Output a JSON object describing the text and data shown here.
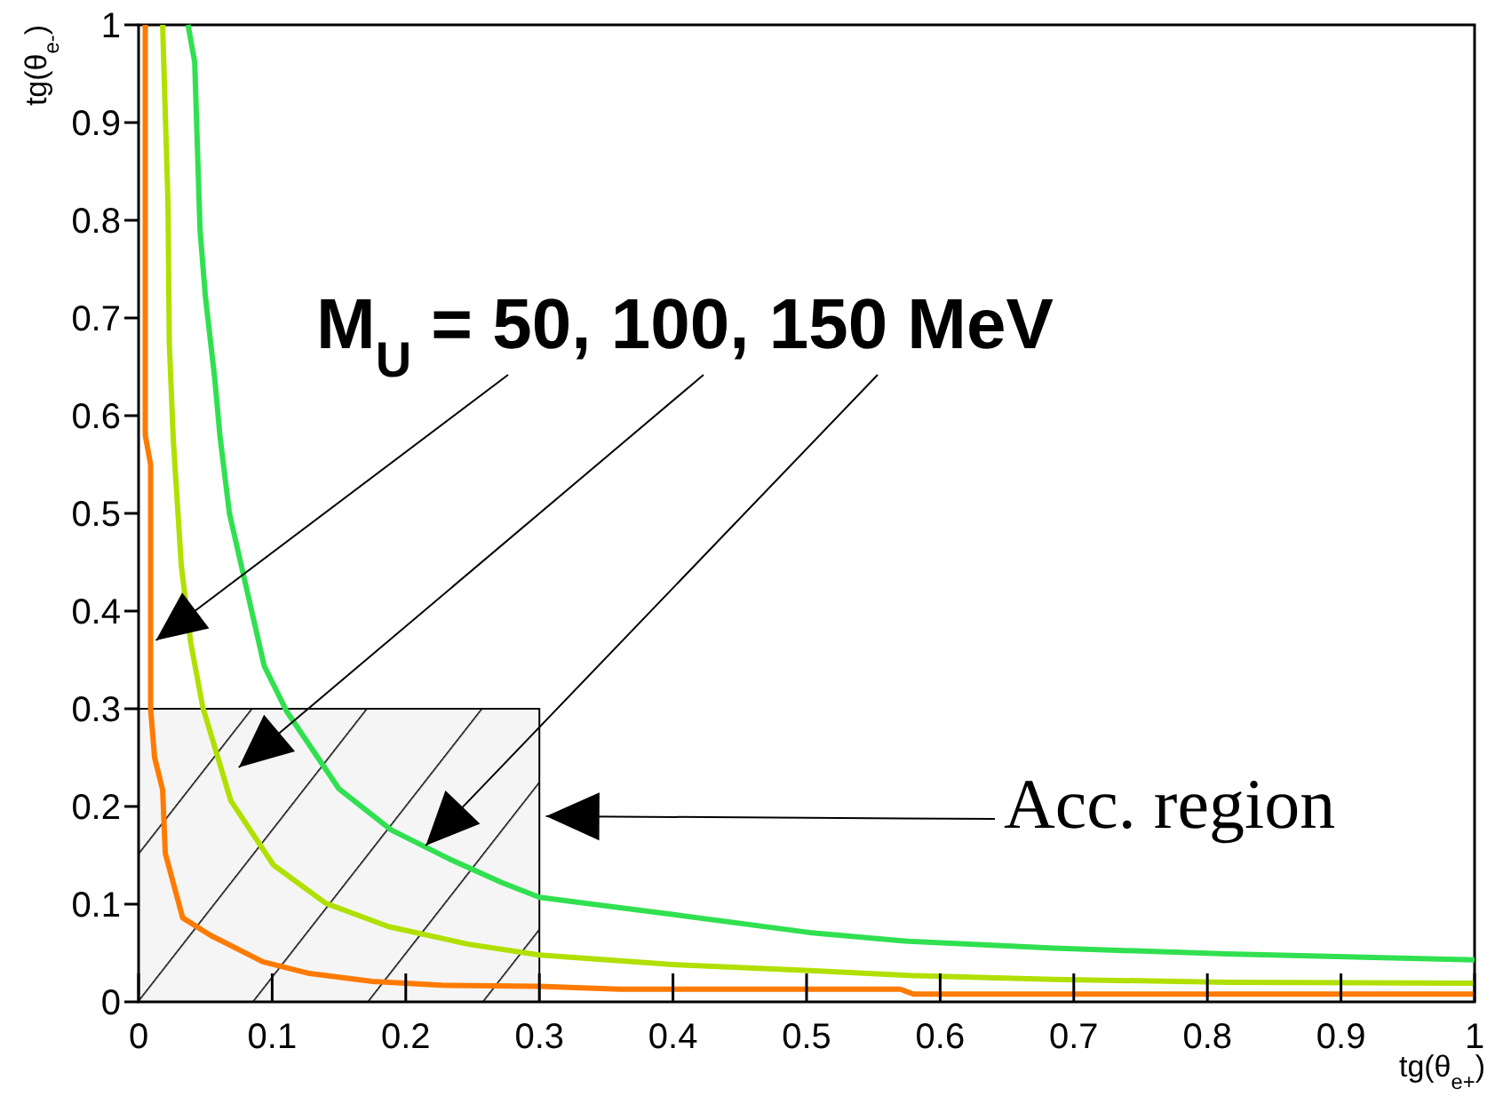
{
  "chart_data": {
    "type": "line",
    "xlabel": "tg(θ$_{e+}$)",
    "ylabel": "tg(θ$_{e-}$)",
    "xlim": [
      0,
      1
    ],
    "ylim": [
      0,
      1
    ],
    "xticks": [
      0,
      0.1,
      0.2,
      0.3,
      0.4,
      0.5,
      0.6,
      0.7,
      0.8,
      0.9,
      1
    ],
    "yticks": [
      0,
      0.1,
      0.2,
      0.3,
      0.4,
      0.5,
      0.6,
      0.7,
      0.8,
      0.9,
      1
    ],
    "grid": false,
    "marker": "none",
    "line_style": "solid",
    "annotations": [
      {
        "text": "M$_{U}$ = 50, 100, 150 MeV",
        "x": 0.013,
        "y": 0.37
      },
      {
        "text": "Acc. region",
        "x": 0.305,
        "y": 0.19
      }
    ],
    "series": [
      {
        "color": "#ff7a00",
        "x": [
          0.005,
          0.005,
          0.009,
          0.009,
          0.012,
          0.018,
          0.02,
          0.033,
          0.054,
          0.093,
          0.128,
          0.175,
          0.227,
          0.3,
          0.36,
          0.57,
          0.58,
          0.75,
          1
        ],
        "values": [
          1,
          0.58,
          0.55,
          0.3,
          0.25,
          0.217,
          0.152,
          0.086,
          0.068,
          0.041,
          0.029,
          0.021,
          0.017,
          0.016,
          0.013,
          0.013,
          0.008,
          0.008,
          0.008
        ]
      },
      {
        "color": "#b0e000",
        "x": [
          0.018,
          0.022,
          0.023,
          0.026,
          0.032,
          0.039,
          0.048,
          0.069,
          0.101,
          0.14,
          0.187,
          0.247,
          0.3,
          0.402,
          0.502,
          0.576,
          0.685,
          0.815,
          1
        ],
        "values": [
          1,
          0.818,
          0.674,
          0.575,
          0.446,
          0.368,
          0.302,
          0.206,
          0.14,
          0.101,
          0.077,
          0.059,
          0.048,
          0.038,
          0.032,
          0.027,
          0.023,
          0.02,
          0.019
        ]
      },
      {
        "color": "#30e050",
        "x": [
          0.037,
          0.042,
          0.046,
          0.05,
          0.057,
          0.061,
          0.068,
          0.079,
          0.094,
          0.111,
          0.15,
          0.189,
          0.233,
          0.272,
          0.3,
          0.402,
          0.502,
          0.576,
          0.685,
          0.815,
          1
        ],
        "values": [
          1,
          0.962,
          0.79,
          0.722,
          0.638,
          0.578,
          0.5,
          0.434,
          0.344,
          0.297,
          0.218,
          0.176,
          0.146,
          0.122,
          0.107,
          0.089,
          0.071,
          0.062,
          0.055,
          0.049,
          0.043
        ]
      },
      {
        "type": "area",
        "color": "#000000",
        "x": [
          0,
          0.3
        ],
        "values": [
          0.3,
          0.3
        ]
      }
    ]
  }
}
